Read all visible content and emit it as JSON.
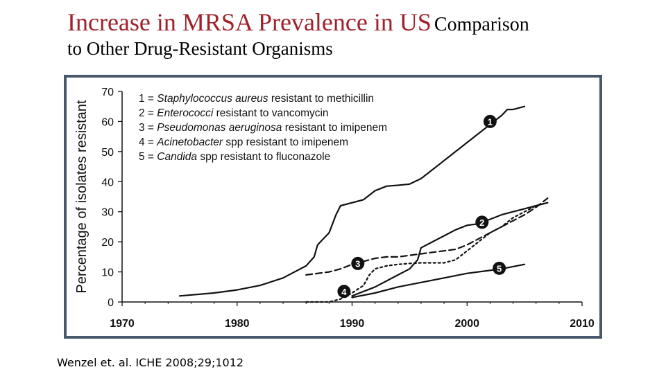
{
  "slide": {
    "title_main": "Increase in MRSA Prevalence in US",
    "title_sub1": "Comparison",
    "title_sub2": "to Other Drug-Resistant Organisms",
    "citation": "Wenzel et. al. ICHE 2008;29;1012"
  },
  "colors": {
    "title": "#a0212b",
    "frame": "#47586a",
    "ink": "#111111"
  },
  "chart_data": {
    "type": "line",
    "ylabel": "Percentage of isolates resistant",
    "xlabel": "",
    "xlim": [
      1970,
      2010
    ],
    "ylim": [
      0,
      70
    ],
    "x_ticks": [
      1970,
      1980,
      1990,
      2000,
      2010
    ],
    "y_ticks": [
      0,
      10,
      20,
      30,
      40,
      50,
      60,
      70
    ],
    "grid": false,
    "legend_placement": "top-left",
    "series": [
      {
        "id": "1",
        "marker": "1",
        "name_italic": "Staphylococcus aureus",
        "name_rest": " resistant to methicillin",
        "style": "solid",
        "label_at": [
          2002,
          60
        ],
        "points": [
          [
            1975,
            2
          ],
          [
            1978,
            3
          ],
          [
            1980,
            4
          ],
          [
            1982,
            5.5
          ],
          [
            1984,
            8
          ],
          [
            1986,
            12
          ],
          [
            1986.7,
            15
          ],
          [
            1987,
            19
          ],
          [
            1987.5,
            21
          ],
          [
            1988,
            23
          ],
          [
            1988.6,
            29
          ],
          [
            1989,
            32
          ],
          [
            1990,
            33
          ],
          [
            1991,
            34
          ],
          [
            1992,
            37
          ],
          [
            1993,
            38.5
          ],
          [
            1994,
            38.8
          ],
          [
            1995,
            39.2
          ],
          [
            1996,
            41
          ],
          [
            1998,
            47
          ],
          [
            2000,
            53
          ],
          [
            2002,
            59
          ],
          [
            2003,
            62
          ],
          [
            2003.5,
            64
          ],
          [
            2004,
            64
          ],
          [
            2005,
            65
          ]
        ]
      },
      {
        "id": "2",
        "marker": "2",
        "name_italic": "Enterococci",
        "name_rest": " resistant to vancomycin",
        "style": "solid",
        "label_at": [
          2001.3,
          26.5
        ],
        "points": [
          [
            1990,
            2
          ],
          [
            1992,
            5
          ],
          [
            1994,
            9
          ],
          [
            1995,
            11
          ],
          [
            1995.7,
            14
          ],
          [
            1996,
            18
          ],
          [
            1997,
            20
          ],
          [
            1998,
            22
          ],
          [
            1999,
            24
          ],
          [
            2000,
            25.5
          ],
          [
            2001,
            26
          ],
          [
            2002,
            27.5
          ],
          [
            2003,
            29
          ],
          [
            2004,
            30
          ],
          [
            2005,
            31
          ],
          [
            2006,
            32
          ],
          [
            2007,
            33
          ]
        ]
      },
      {
        "id": "3",
        "marker": "3",
        "name_italic": "Pseudomonas aeruginosa",
        "name_rest": " resistant to imipenem",
        "style": "dashed",
        "label_at": [
          1990.5,
          12.8
        ],
        "points": [
          [
            1986,
            9
          ],
          [
            1988,
            10
          ],
          [
            1989,
            11
          ],
          [
            1990,
            12.5
          ],
          [
            1991,
            13.5
          ],
          [
            1992,
            14.5
          ],
          [
            1993,
            15
          ],
          [
            1994,
            15
          ],
          [
            1995,
            15.5
          ],
          [
            1996,
            16
          ],
          [
            1997,
            16.5
          ],
          [
            1998,
            17
          ],
          [
            1999,
            17.5
          ],
          [
            2000,
            19
          ],
          [
            2001,
            21
          ],
          [
            2002,
            23
          ],
          [
            2003,
            25
          ],
          [
            2004,
            27
          ],
          [
            2005,
            29
          ],
          [
            2006,
            31.5
          ],
          [
            2007,
            34.5
          ]
        ]
      },
      {
        "id": "4",
        "marker": "4",
        "name_italic": "Acinetobacter",
        "name_rest": " spp resistant to imipenem",
        "style": "dotted",
        "label_at": [
          1989.3,
          3.5
        ],
        "points": [
          [
            1986,
            0
          ],
          [
            1987,
            0
          ],
          [
            1988,
            0
          ],
          [
            1989,
            1
          ],
          [
            1990,
            3
          ],
          [
            1991,
            5.5
          ],
          [
            1991.5,
            9
          ],
          [
            1992,
            11
          ],
          [
            1993,
            12
          ],
          [
            1994,
            12.5
          ],
          [
            1995,
            12.8
          ],
          [
            1996,
            13
          ],
          [
            1997,
            13
          ],
          [
            1998,
            13
          ],
          [
            1999,
            14
          ],
          [
            2000,
            17
          ],
          [
            2001,
            20
          ],
          [
            2002,
            23
          ],
          [
            2003,
            25
          ],
          [
            2004,
            28
          ],
          [
            2005,
            30
          ],
          [
            2006,
            32
          ],
          [
            2007,
            33
          ]
        ]
      },
      {
        "id": "5",
        "marker": "5",
        "name_italic": "Candida",
        "name_rest": " spp resistant to fluconazole",
        "style": "solid",
        "label_at": [
          2002.8,
          11.2
        ],
        "points": [
          [
            1990,
            1.5
          ],
          [
            1992,
            3
          ],
          [
            1994,
            5
          ],
          [
            1996,
            6.5
          ],
          [
            1998,
            8
          ],
          [
            2000,
            9.5
          ],
          [
            2002,
            10.5
          ],
          [
            2003,
            11
          ],
          [
            2005,
            12.5
          ]
        ]
      }
    ]
  }
}
